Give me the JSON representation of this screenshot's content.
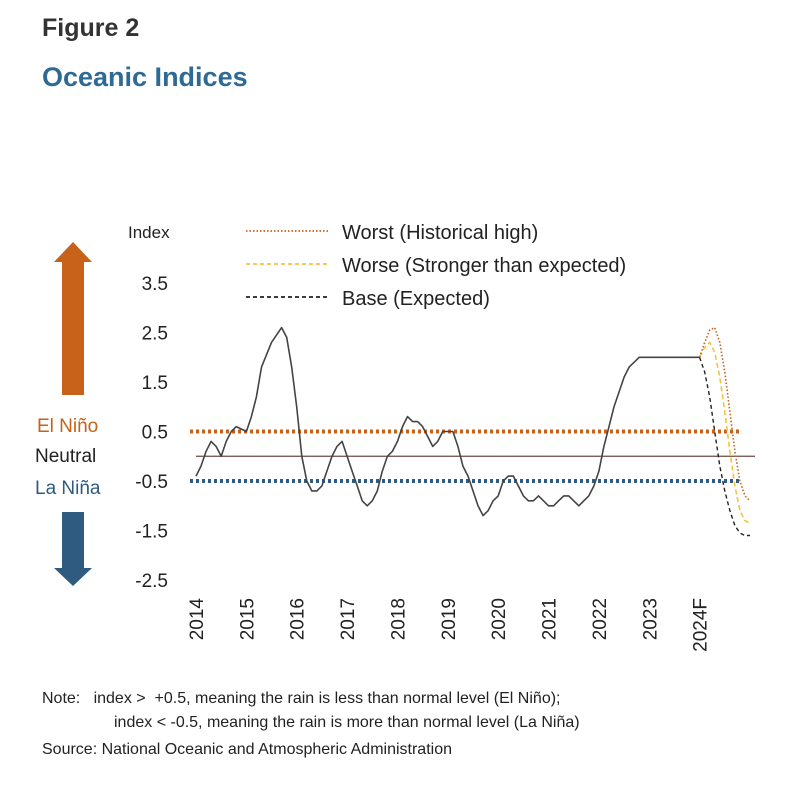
{
  "figure_label": "Figure  2",
  "title": "Oceanic Indices",
  "notes": {
    "line1": "Note:   index >  +0.5, meaning the rain is less than normal level (El Niño);",
    "line2": "index < -0.5, meaning the rain is more than normal level (La Niña)",
    "source": "Source: National Oceanic and Atmospheric Administration"
  },
  "side_labels": {
    "el_nino": "El Niño",
    "neutral": "Neutral",
    "la_nina": "La Niña"
  },
  "colors": {
    "el_nino": "#c8611a",
    "la_nina": "#2f5b80",
    "worst": "#c8611a",
    "worse": "#f5c242",
    "base": "#222222",
    "history": "#444444",
    "zero_line": "#6b4a42"
  },
  "chart_data": {
    "type": "line",
    "ylabel": "Index",
    "ylim": [
      -2.5,
      3.5
    ],
    "yticks": [
      3.5,
      2.5,
      1.5,
      0.5,
      -0.5,
      -1.5,
      -2.5
    ],
    "x_tick_labels": [
      "2014",
      "2015",
      "2016",
      "2017",
      "2018",
      "2019",
      "2020",
      "2021",
      "2022",
      "2023",
      "2024F"
    ],
    "x_tick_positions": [
      2014,
      2015,
      2016,
      2017,
      2018,
      2019,
      2020,
      2021,
      2022,
      2023,
      2024
    ],
    "xlim": [
      2014,
      2025
    ],
    "thresholds": [
      0.5,
      -0.5
    ],
    "zero_line": 0,
    "legend": [
      {
        "key": "worst",
        "label": "Worst (Historical high)",
        "style": "dotted"
      },
      {
        "key": "worse",
        "label": "Worse (Stronger than expected)",
        "style": "dashed"
      },
      {
        "key": "base",
        "label": "Base (Expected)",
        "style": "dashed"
      }
    ],
    "series": [
      {
        "key": "history",
        "x": [
          2014.0,
          2014.1,
          2014.2,
          2014.3,
          2014.4,
          2014.5,
          2014.6,
          2014.7,
          2014.8,
          2015.0,
          2015.1,
          2015.2,
          2015.3,
          2015.5,
          2015.7,
          2015.8,
          2015.9,
          2016.0,
          2016.1,
          2016.2,
          2016.3,
          2016.4,
          2016.5,
          2016.6,
          2016.7,
          2016.8,
          2016.9,
          2017.0,
          2017.1,
          2017.2,
          2017.3,
          2017.4,
          2017.5,
          2017.6,
          2017.7,
          2017.8,
          2017.9,
          2018.0,
          2018.1,
          2018.2,
          2018.3,
          2018.4,
          2018.5,
          2018.6,
          2018.7,
          2018.8,
          2018.9,
          2019.0,
          2019.1,
          2019.2,
          2019.3,
          2019.4,
          2019.5,
          2019.6,
          2019.7,
          2019.8,
          2019.9,
          2020.0,
          2020.1,
          2020.2,
          2020.3,
          2020.4,
          2020.5,
          2020.6,
          2020.7,
          2020.8,
          2020.9,
          2021.0,
          2021.1,
          2021.2,
          2021.3,
          2021.4,
          2021.5,
          2021.6,
          2021.7,
          2021.8,
          2021.9,
          2022.0,
          2022.1,
          2022.2,
          2022.3,
          2022.4,
          2022.5,
          2022.6,
          2022.7,
          2022.8,
          2022.9,
          2023.0,
          2023.1,
          2023.2,
          2023.3,
          2023.4,
          2023.5,
          2023.6,
          2023.7,
          2023.8,
          2023.9,
          2024.0
        ],
        "values": [
          -0.4,
          -0.2,
          0.1,
          0.3,
          0.2,
          0.0,
          0.3,
          0.5,
          0.6,
          0.5,
          0.8,
          1.2,
          1.8,
          2.3,
          2.6,
          2.4,
          1.8,
          1.0,
          0.0,
          -0.5,
          -0.7,
          -0.7,
          -0.6,
          -0.3,
          0.0,
          0.2,
          0.3,
          0.0,
          -0.3,
          -0.6,
          -0.9,
          -1.0,
          -0.9,
          -0.7,
          -0.3,
          0.0,
          0.1,
          0.3,
          0.6,
          0.8,
          0.7,
          0.7,
          0.6,
          0.4,
          0.2,
          0.3,
          0.5,
          0.5,
          0.5,
          0.2,
          -0.2,
          -0.4,
          -0.7,
          -1.0,
          -1.2,
          -1.1,
          -0.9,
          -0.8,
          -0.5,
          -0.4,
          -0.4,
          -0.6,
          -0.8,
          -0.9,
          -0.9,
          -0.8,
          -0.9,
          -1.0,
          -1.0,
          -0.9,
          -0.8,
          -0.8,
          -0.9,
          -1.0,
          -0.9,
          -0.8,
          -0.6,
          -0.3,
          0.2,
          0.6,
          1.0,
          1.3,
          1.6,
          1.8,
          1.9,
          2.0,
          2.0,
          2.0,
          2.0,
          2.0,
          2.0,
          2.0,
          2.0,
          2.0,
          2.0,
          2.0,
          2.0,
          2.0
        ]
      },
      {
        "key": "base",
        "x": [
          2024.0,
          2024.1,
          2024.2,
          2024.3,
          2024.4,
          2024.5,
          2024.6,
          2024.7,
          2024.8,
          2024.9,
          2025.0
        ],
        "values": [
          2.0,
          1.7,
          1.2,
          0.5,
          -0.2,
          -0.7,
          -1.1,
          -1.4,
          -1.55,
          -1.6,
          -1.6
        ]
      },
      {
        "key": "worse",
        "x": [
          2024.0,
          2024.1,
          2024.2,
          2024.3,
          2024.4,
          2024.5,
          2024.6,
          2024.7,
          2024.8,
          2024.9,
          2025.0
        ],
        "values": [
          2.0,
          2.2,
          2.3,
          2.1,
          1.6,
          0.9,
          0.1,
          -0.6,
          -1.1,
          -1.3,
          -1.35
        ]
      },
      {
        "key": "worst",
        "x": [
          2024.0,
          2024.1,
          2024.2,
          2024.3,
          2024.4,
          2024.5,
          2024.6,
          2024.7,
          2024.8,
          2024.9,
          2025.0
        ],
        "values": [
          2.0,
          2.3,
          2.55,
          2.6,
          2.3,
          1.7,
          0.9,
          0.1,
          -0.5,
          -0.8,
          -0.9
        ]
      }
    ]
  }
}
